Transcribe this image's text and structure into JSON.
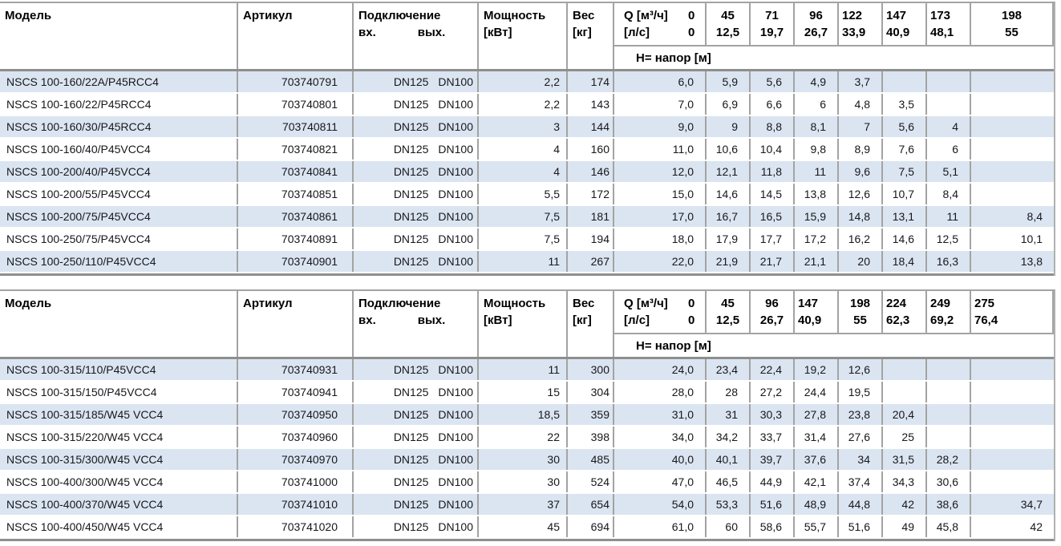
{
  "header": {
    "model": "Модель",
    "article": "Артикул",
    "connection": "Подключение",
    "conn_in": "вх.",
    "conn_out": "вых.",
    "power_line1": "Мощность",
    "power_line2": "[кВт]",
    "weight_line1": "Вес",
    "weight_line2": "[кг]",
    "q_label_m3h": "Q [м³/ч]",
    "q_zero_m3h": "0",
    "q_label_ls": "[л/с]",
    "q_zero_ls": "0",
    "head_row_label": "Н= напор [м]"
  },
  "colors": {
    "row_highlight": "#dbe5f1",
    "border_grey": "#a3a3a3",
    "thick_border": "#8e8e8e"
  },
  "table1": {
    "q_columns": [
      {
        "m3h": "45",
        "ls": "12,5"
      },
      {
        "m3h": "71",
        "ls": "19,7"
      },
      {
        "m3h": "96",
        "ls": "26,7"
      },
      {
        "m3h": "122",
        "ls": "33,9"
      },
      {
        "m3h": "147",
        "ls": "40,9"
      },
      {
        "m3h": "173",
        "ls": "48,1"
      },
      {
        "m3h": "198",
        "ls": "55"
      }
    ],
    "rows": [
      {
        "model": "NSCS 100-160/22A/P45RCC4",
        "article": "703740791",
        "dn_in": "DN125",
        "dn_out": "DN100",
        "power": "2,2",
        "weight": "174",
        "h": [
          "6,0",
          "5,9",
          "5,6",
          "4,9",
          "3,7",
          "",
          "",
          ""
        ]
      },
      {
        "model": "NSCS 100-160/22/P45RCC4",
        "article": "703740801",
        "dn_in": "DN125",
        "dn_out": "DN100",
        "power": "2,2",
        "weight": "143",
        "h": [
          "7,0",
          "6,9",
          "6,6",
          "6",
          "4,8",
          "3,5",
          "",
          ""
        ]
      },
      {
        "model": "NSCS 100-160/30/P45RCC4",
        "article": "703740811",
        "dn_in": "DN125",
        "dn_out": "DN100",
        "power": "3",
        "weight": "144",
        "h": [
          "9,0",
          "9",
          "8,8",
          "8,1",
          "7",
          "5,6",
          "4",
          ""
        ]
      },
      {
        "model": "NSCS 100-160/40/P45VCC4",
        "article": "703740821",
        "dn_in": "DN125",
        "dn_out": "DN100",
        "power": "4",
        "weight": "160",
        "h": [
          "11,0",
          "10,6",
          "10,4",
          "9,8",
          "8,9",
          "7,6",
          "6",
          ""
        ]
      },
      {
        "model": "NSCS 100-200/40/P45VCC4",
        "article": "703740841",
        "dn_in": "DN125",
        "dn_out": "DN100",
        "power": "4",
        "weight": "146",
        "h": [
          "12,0",
          "12,1",
          "11,8",
          "11",
          "9,6",
          "7,5",
          "5,1",
          ""
        ]
      },
      {
        "model": "NSCS 100-200/55/P45VCC4",
        "article": "703740851",
        "dn_in": "DN125",
        "dn_out": "DN100",
        "power": "5,5",
        "weight": "172",
        "h": [
          "15,0",
          "14,6",
          "14,5",
          "13,8",
          "12,6",
          "10,7",
          "8,4",
          ""
        ]
      },
      {
        "model": "NSCS 100-200/75/P45VCC4",
        "article": "703740861",
        "dn_in": "DN125",
        "dn_out": "DN100",
        "power": "7,5",
        "weight": "181",
        "h": [
          "17,0",
          "16,7",
          "16,5",
          "15,9",
          "14,8",
          "13,1",
          "11",
          "8,4"
        ]
      },
      {
        "model": "NSCS 100-250/75/P45VCC4",
        "article": "703740891",
        "dn_in": "DN125",
        "dn_out": "DN100",
        "power": "7,5",
        "weight": "194",
        "h": [
          "18,0",
          "17,9",
          "17,7",
          "17,2",
          "16,2",
          "14,6",
          "12,5",
          "10,1"
        ]
      },
      {
        "model": "NSCS 100-250/110/P45VCC4",
        "article": "703740901",
        "dn_in": "DN125",
        "dn_out": "DN100",
        "power": "11",
        "weight": "267",
        "h": [
          "22,0",
          "21,9",
          "21,7",
          "21,1",
          "20",
          "18,4",
          "16,3",
          "13,8"
        ]
      }
    ]
  },
  "table2": {
    "q_columns": [
      {
        "m3h": "45",
        "ls": "12,5"
      },
      {
        "m3h": "96",
        "ls": "26,7"
      },
      {
        "m3h": "147",
        "ls": "40,9"
      },
      {
        "m3h": "198",
        "ls": "55"
      },
      {
        "m3h": "224",
        "ls": "62,3"
      },
      {
        "m3h": "249",
        "ls": "69,2"
      },
      {
        "m3h": "275",
        "ls": "76,4"
      }
    ],
    "rows": [
      {
        "model": "NSCS 100-315/110/P45VCC4",
        "article": "703740931",
        "dn_in": "DN125",
        "dn_out": "DN100",
        "power": "11",
        "weight": "300",
        "h": [
          "24,0",
          "23,4",
          "22,4",
          "19,2",
          "12,6",
          "",
          "",
          ""
        ]
      },
      {
        "model": "NSCS 100-315/150/P45VCC4",
        "article": "703740941",
        "dn_in": "DN125",
        "dn_out": "DN100",
        "power": "15",
        "weight": "304",
        "h": [
          "28,0",
          "28",
          "27,2",
          "24,4",
          "19,5",
          "",
          "",
          ""
        ]
      },
      {
        "model": "NSCS 100-315/185/W45 VCC4",
        "article": "703740950",
        "dn_in": "DN125",
        "dn_out": "DN100",
        "power": "18,5",
        "weight": "359",
        "h": [
          "31,0",
          "31",
          "30,3",
          "27,8",
          "23,8",
          "20,4",
          "",
          ""
        ]
      },
      {
        "model": "NSCS 100-315/220/W45 VCC4",
        "article": "703740960",
        "dn_in": "DN125",
        "dn_out": "DN100",
        "power": "22",
        "weight": "398",
        "h": [
          "34,0",
          "34,2",
          "33,7",
          "31,4",
          "27,6",
          "25",
          "",
          ""
        ]
      },
      {
        "model": "NSCS 100-315/300/W45 VCC4",
        "article": "703740970",
        "dn_in": "DN125",
        "dn_out": "DN100",
        "power": "30",
        "weight": "485",
        "h": [
          "40,0",
          "40,1",
          "39,7",
          "37,6",
          "34",
          "31,5",
          "28,2",
          ""
        ]
      },
      {
        "model": "NSCS 100-400/300/W45 VCC4",
        "article": "703741000",
        "dn_in": "DN125",
        "dn_out": "DN100",
        "power": "30",
        "weight": "524",
        "h": [
          "47,0",
          "46,5",
          "44,9",
          "42,1",
          "37,4",
          "34,3",
          "30,6",
          ""
        ]
      },
      {
        "model": "NSCS 100-400/370/W45 VCC4",
        "article": "703741010",
        "dn_in": "DN125",
        "dn_out": "DN100",
        "power": "37",
        "weight": "654",
        "h": [
          "54,0",
          "53,3",
          "51,6",
          "48,9",
          "44,8",
          "42",
          "38,6",
          "34,7"
        ]
      },
      {
        "model": "NSCS 100-400/450/W45 VCC4",
        "article": "703741020",
        "dn_in": "DN125",
        "dn_out": "DN100",
        "power": "45",
        "weight": "694",
        "h": [
          "61,0",
          "60",
          "58,6",
          "55,7",
          "51,6",
          "49",
          "45,8",
          "42"
        ]
      }
    ]
  }
}
